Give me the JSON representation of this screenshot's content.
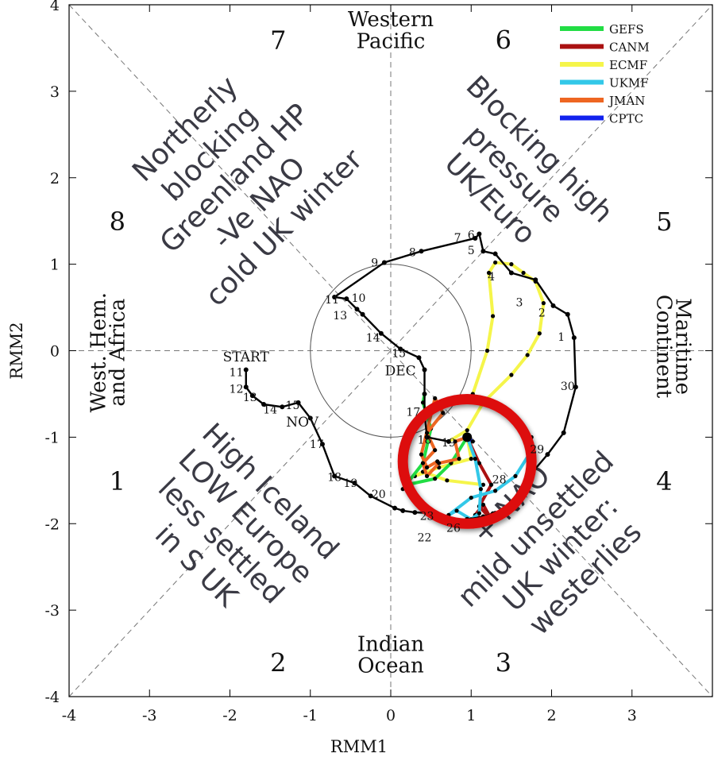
{
  "chart_data": {
    "type": "line",
    "xlabel": "RMM1",
    "ylabel": "RMM2",
    "xlim": [
      -4,
      4
    ],
    "ylim": [
      -4,
      4
    ],
    "xticks": [
      "-4",
      "-3",
      "-2",
      "-1",
      "0",
      "1",
      "2",
      "3"
    ],
    "yticks": [
      "-4",
      "-3",
      "-2",
      "-1",
      "0",
      "1",
      "2",
      "3",
      "4"
    ],
    "phase_numbers": [
      {
        "label": "1",
        "x": -3.4,
        "y": -1.5
      },
      {
        "label": "2",
        "x": -1.4,
        "y": -3.6
      },
      {
        "label": "3",
        "x": 1.4,
        "y": -3.6
      },
      {
        "label": "4",
        "x": 3.4,
        "y": -1.5
      },
      {
        "label": "5",
        "x": 3.4,
        "y": 1.5
      },
      {
        "label": "6",
        "x": 1.4,
        "y": 3.6
      },
      {
        "label": "7",
        "x": -1.4,
        "y": 3.6
      },
      {
        "label": "8",
        "x": -3.4,
        "y": 1.5
      }
    ],
    "region_labels": {
      "top": [
        "Western",
        "Pacific"
      ],
      "bottom": [
        "Indian",
        "Ocean"
      ],
      "left": [
        "West. Hem.",
        "and Africa"
      ],
      "right": [
        "Maritime",
        "Continent"
      ]
    },
    "annotations": [
      {
        "lines": [
          "Northerly",
          "blocking",
          "Greenland HP",
          "-Ve NAO",
          "cold UK winter"
        ],
        "x": -1.95,
        "y": 2.0
      },
      {
        "lines": [
          "Blocking high",
          "pressure",
          "UK/Euro"
        ],
        "x": 1.55,
        "y": 2.05
      },
      {
        "lines": [
          "High Iceland",
          "LOW Europe",
          "less settled",
          "in S UK"
        ],
        "x": -1.95,
        "y": -2.05
      },
      {
        "lines": [
          "+ NAO",
          "mild unsettled",
          "UK winter:",
          "westerlies"
        ],
        "x": 1.95,
        "y": -2.2
      }
    ],
    "legend": {
      "placement": "top-right",
      "entries": [
        {
          "name": "GEFS",
          "color": "#22dd44"
        },
        {
          "name": "CANM",
          "color": "#aa1111"
        },
        {
          "name": "ECMF",
          "color": "#f5f54a"
        },
        {
          "name": "UKMF",
          "color": "#33c8e8"
        },
        {
          "name": "JMAN",
          "color": "#ee6622"
        },
        {
          "name": "CPTC",
          "color": "#1122ee"
        }
      ]
    },
    "observed": {
      "color": "#000000",
      "point_labels": [
        {
          "text": "START",
          "x": -1.8,
          "y": -0.07
        },
        {
          "text": "11",
          "x": -1.92,
          "y": -0.24
        },
        {
          "text": "12",
          "x": -1.92,
          "y": -0.43
        },
        {
          "text": "13",
          "x": -1.75,
          "y": -0.53
        },
        {
          "text": "14",
          "x": -1.5,
          "y": -0.67
        },
        {
          "text": "15",
          "x": -1.22,
          "y": -0.62
        },
        {
          "text": "NOV",
          "x": -1.1,
          "y": -0.82
        },
        {
          "text": "17",
          "x": -0.92,
          "y": -1.07
        },
        {
          "text": "18",
          "x": -0.7,
          "y": -1.45
        },
        {
          "text": "19",
          "x": -0.5,
          "y": -1.52
        },
        {
          "text": "20",
          "x": -0.15,
          "y": -1.65
        },
        {
          "text": "23",
          "x": 0.45,
          "y": -1.9
        },
        {
          "text": "26",
          "x": 0.78,
          "y": -2.04
        },
        {
          "text": "22",
          "x": 0.42,
          "y": -2.15
        },
        {
          "text": "28",
          "x": 1.35,
          "y": -1.48
        },
        {
          "text": "29",
          "x": 1.82,
          "y": -1.13
        },
        {
          "text": "30",
          "x": 2.2,
          "y": -0.4
        },
        {
          "text": "1",
          "x": 2.12,
          "y": 0.17
        },
        {
          "text": "2",
          "x": 1.88,
          "y": 0.45
        },
        {
          "text": "3",
          "x": 1.6,
          "y": 0.57
        },
        {
          "text": "4",
          "x": 1.25,
          "y": 0.87
        },
        {
          "text": "5",
          "x": 1.0,
          "y": 1.17
        },
        {
          "text": "6",
          "x": 1.0,
          "y": 1.35
        },
        {
          "text": "7",
          "x": 0.83,
          "y": 1.32
        },
        {
          "text": "8",
          "x": 0.27,
          "y": 1.15
        },
        {
          "text": "9",
          "x": -0.2,
          "y": 1.03
        },
        {
          "text": "11",
          "x": -0.73,
          "y": 0.6
        },
        {
          "text": "10",
          "x": -0.4,
          "y": 0.62
        },
        {
          "text": "13",
          "x": -0.63,
          "y": 0.42
        },
        {
          "text": "14",
          "x": -0.22,
          "y": 0.16
        },
        {
          "text": "15",
          "x": 0.1,
          "y": -0.02
        },
        {
          "text": "DEC",
          "x": 0.12,
          "y": -0.23
        },
        {
          "text": "17",
          "x": 0.28,
          "y": -0.7
        },
        {
          "text": "18",
          "x": 0.42,
          "y": -1.02
        },
        {
          "text": "19",
          "x": 0.72,
          "y": -1.05
        }
      ],
      "x": [
        -1.8,
        -1.8,
        -1.72,
        -1.58,
        -1.35,
        -1.15,
        -1.0,
        -0.85,
        -0.7,
        -0.45,
        -0.25,
        0.05,
        0.15,
        0.3,
        0.55,
        0.7,
        0.95,
        1.15,
        1.3,
        1.5,
        1.72,
        1.95,
        2.15,
        2.3,
        2.28,
        2.2,
        2.02,
        1.8,
        1.5,
        1.3,
        1.15,
        1.1,
        1.05,
        0.38,
        -0.08,
        -0.7,
        -0.55,
        -0.42,
        -0.35,
        -0.12,
        0.12,
        0.35,
        0.42,
        0.42,
        0.42,
        0.45,
        0.72
      ],
      "y": [
        -0.22,
        -0.42,
        -0.52,
        -0.62,
        -0.65,
        -0.6,
        -0.78,
        -1.08,
        -1.45,
        -1.53,
        -1.68,
        -1.82,
        -1.85,
        -1.87,
        -1.88,
        -1.98,
        -1.95,
        -1.92,
        -1.88,
        -1.75,
        -1.45,
        -1.2,
        -0.95,
        -0.42,
        0.15,
        0.42,
        0.52,
        0.82,
        0.9,
        1.12,
        1.15,
        1.35,
        1.3,
        1.15,
        1.02,
        0.62,
        0.6,
        0.48,
        0.42,
        0.2,
        0.02,
        -0.08,
        -0.22,
        -0.5,
        -0.72,
        -1.0,
        -1.05
      ]
    },
    "forecast_series": [
      {
        "color": "#f5f54a",
        "x": [
          0.72,
          0.95,
          1.15,
          1.5,
          1.7,
          1.85,
          1.9,
          1.8,
          1.65,
          1.5,
          1.3,
          1.22,
          1.27,
          1.2,
          1.02
        ],
        "y": [
          -1.05,
          -0.92,
          -0.6,
          -0.28,
          -0.05,
          0.2,
          0.55,
          0.8,
          0.9,
          1.0,
          1.02,
          0.9,
          0.4,
          0.0,
          -0.5
        ]
      },
      {
        "color": "#f5f54a",
        "x": [
          0.95,
          1.0,
          0.6,
          0.3,
          0.4,
          0.7,
          1.15
        ],
        "y": [
          -1.0,
          -1.25,
          -1.35,
          -1.45,
          -1.4,
          -1.5,
          -1.55
        ]
      },
      {
        "color": "#22dd44",
        "x": [
          0.95,
          0.75,
          0.55,
          0.2,
          0.15,
          0.4,
          0.5,
          0.4,
          0.42
        ],
        "y": [
          -1.0,
          -1.3,
          -1.48,
          -1.55,
          -1.6,
          -1.3,
          -0.9,
          -0.6,
          -0.5
        ]
      },
      {
        "color": "#ee6622",
        "x": [
          0.95,
          0.8,
          0.85,
          0.6,
          0.45,
          0.4,
          0.55,
          0.45,
          0.65,
          0.55,
          0.38,
          0.45,
          0.58
        ],
        "y": [
          -1.0,
          -1.05,
          -1.25,
          -1.3,
          -1.45,
          -1.3,
          -1.15,
          -0.95,
          -0.72,
          -0.55,
          -1.2,
          -1.35,
          -1.28
        ]
      },
      {
        "color": "#aa1111",
        "x": [
          0.95,
          1.1,
          1.25,
          1.1,
          1.25,
          1.15,
          1.05,
          1.15,
          1.27
        ],
        "y": [
          -1.0,
          -1.3,
          -1.55,
          -1.8,
          -1.95,
          -1.78,
          -1.9,
          -1.95,
          -1.88
        ]
      },
      {
        "color": "#33c8e8",
        "x": [
          0.95,
          1.05,
          1.12,
          1.1,
          1.0,
          0.82,
          0.72,
          1.0,
          1.3,
          1.55,
          1.72,
          1.75
        ],
        "y": [
          -1.0,
          -1.25,
          -1.6,
          -1.88,
          -1.95,
          -1.85,
          -1.9,
          -1.7,
          -1.62,
          -1.45,
          -1.2,
          -1.0
        ]
      },
      {
        "color": "#1122ee",
        "x": [
          0.95,
          1.02
        ],
        "y": [
          -1.0,
          -1.05
        ]
      }
    ],
    "circle": {
      "center": [
        0,
        0
      ],
      "radius": 1.0
    },
    "highlight_circle": {
      "center": [
        0.95,
        -1.28
      ],
      "radius_x": 0.8,
      "radius_y": 0.72,
      "color": "#dd1111"
    }
  }
}
